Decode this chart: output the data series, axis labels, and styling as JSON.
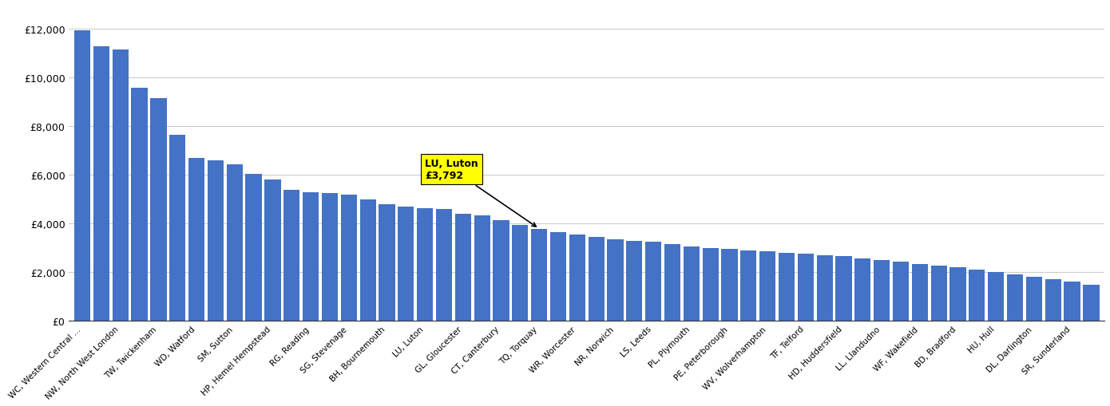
{
  "categories": [
    "WC, Western Central ...",
    "NW, North West London",
    "TW, Twickenham",
    "WD, Watford",
    "SM, Sutton",
    "HP, Hemel Hempstead",
    "RG, Reading",
    "SG, Stevenage",
    "BH, Bournemouth",
    "LU, Luton",
    "GL, Gloucester",
    "CT, Canterbury",
    "TQ, Torquay",
    "WR, Worcester",
    "NR, Norwich",
    "LS, Leeds",
    "PL, Plymouth",
    "PE, Peterborough",
    "WV, Wolverhampton",
    "TF, Telford",
    "HD, Huddersfield",
    "LL, Llandudno",
    "WF, Wakefield",
    "BD, Bradford",
    "HU, Hull",
    "DL, Darlington",
    "SR, Sunderland"
  ],
  "values": [
    11950,
    11300,
    11150,
    9600,
    9150,
    7650,
    6700,
    6600,
    6450,
    6050,
    5800,
    5400,
    5300,
    5250,
    5200,
    5000,
    4800,
    4700,
    4650,
    4600,
    4400,
    4350,
    4150,
    3950,
    3792,
    3650,
    3550,
    3450,
    3350,
    3300,
    3250,
    3150,
    3050,
    2980,
    2950,
    2900,
    2850,
    2800,
    2750,
    2700,
    2650,
    2580,
    2500,
    2430,
    2350,
    2280,
    2200,
    2100,
    2000,
    1900,
    1800,
    1700,
    1600,
    1500
  ],
  "xtick_labels": [
    "WC, Western Central ...",
    "NW, North West London",
    "TW, Twickenham",
    "WD, Watford",
    "SM, Sutton",
    "HP, Hemel Hempstead",
    "RG, Reading",
    "SG, Stevenage",
    "BH, Bournemouth",
    "LU, Luton",
    "GL, Gloucester",
    "CT, Canterbury",
    "TQ, Torquay",
    "WR, Worcester",
    "NR, Norwich",
    "LS, Leeds",
    "PL, Plymouth",
    "PE, Peterborough",
    "WV, Wolverhampton",
    "TF, Telford",
    "HD, Huddersfield",
    "LL, Llandudno",
    "WF, Wakefield",
    "BD, Bradford",
    "HU, Hull",
    "DL, Darlington",
    "SR, Sunderland"
  ],
  "luton_bar_index": 24,
  "luton_value": 3792,
  "bar_color": "#4472C4",
  "highlight_label": "LU, Luton\n£3,792",
  "highlight_color": "#FFFF00",
  "ylim": [
    0,
    13000
  ],
  "ytick_labels": [
    "£0",
    "£2,000",
    "£4,000",
    "£6,000",
    "£8,000",
    "£10,000",
    "£12,000"
  ],
  "background_color": "#FFFFFF",
  "grid_color": "#CCCCCC"
}
